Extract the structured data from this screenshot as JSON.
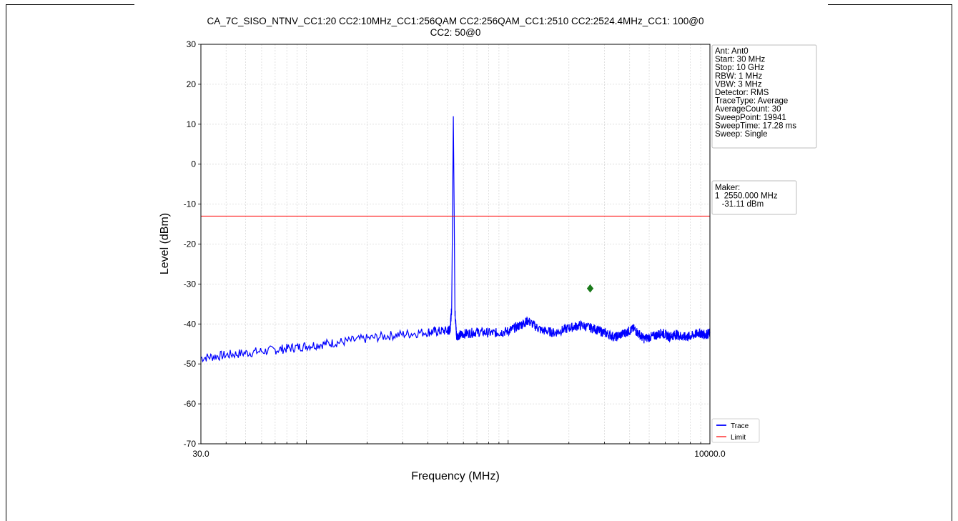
{
  "chart_data": {
    "type": "line",
    "title_line1": "CA_7C_SISO_NTNV_CC1:20 CC2:10MHz_CC1:256QAM CC2:256QAM_CC1:2510 CC2:2524.4MHz_CC1: 100@0",
    "title_line2": "CC2: 50@0",
    "xlabel": "Frequency (MHz)",
    "ylabel": "Level (dBm)",
    "xscale": "log",
    "xlim": [
      30,
      10000
    ],
    "ylim": [
      -70,
      30
    ],
    "x_tick_labels": [
      "30.0",
      "10000.0"
    ],
    "y_ticks": [
      30,
      20,
      10,
      0,
      -10,
      -20,
      -30,
      -40,
      -50,
      -60,
      -70
    ],
    "y_tick_labels": [
      "30",
      "20",
      "10",
      "0",
      "-10",
      "-20",
      "-30",
      "-40",
      "-50",
      "-60",
      "-70"
    ],
    "grid": true,
    "series": [
      {
        "name": "Trace",
        "color": "#0000ff",
        "points": [
          [
            30,
            -48.5
          ],
          [
            45,
            -47.5
          ],
          [
            70,
            -46.5
          ],
          [
            100,
            -45.5
          ],
          [
            150,
            -44.5
          ],
          [
            250,
            -43.0
          ],
          [
            400,
            -42.0
          ],
          [
            500,
            -41.7
          ],
          [
            515,
            -41.5
          ],
          [
            525,
            -36
          ],
          [
            535,
            12.0
          ],
          [
            545,
            -37
          ],
          [
            555,
            -43.0
          ],
          [
            600,
            -42.5
          ],
          [
            700,
            -42.0
          ],
          [
            850,
            -42.3
          ],
          [
            1000,
            -41.8
          ],
          [
            1150,
            -40.3
          ],
          [
            1250,
            -39.2
          ],
          [
            1450,
            -41.5
          ],
          [
            1700,
            -42.2
          ],
          [
            2000,
            -41.0
          ],
          [
            2300,
            -40.3
          ],
          [
            2700,
            -41.3
          ],
          [
            3000,
            -42.2
          ],
          [
            3400,
            -43.3
          ],
          [
            3800,
            -42.2
          ],
          [
            4200,
            -41.2
          ],
          [
            4700,
            -43.7
          ],
          [
            5300,
            -43.0
          ],
          [
            5800,
            -42.2
          ],
          [
            6300,
            -43.2
          ],
          [
            6800,
            -42.6
          ],
          [
            7400,
            -43.3
          ],
          [
            8100,
            -43.0
          ],
          [
            8800,
            -42.2
          ],
          [
            9400,
            -42.7
          ],
          [
            10000,
            -42.3
          ]
        ]
      },
      {
        "name": "Limit",
        "color": "#ff0000",
        "points": [
          [
            30,
            -13
          ],
          [
            10000,
            -13
          ]
        ]
      }
    ],
    "marker": {
      "x": 2550,
      "y": -31.11,
      "color": "#1a7a1a"
    },
    "legend": {
      "placement": "lower-right",
      "entries": [
        {
          "label": "Trace",
          "color": "#0000ff"
        },
        {
          "label": "Limit",
          "color": "#ff0000"
        }
      ]
    },
    "info_box": {
      "placement": "top-right",
      "lines": [
        "Ant: Ant0",
        "Start: 30 MHz",
        "Stop: 10 GHz",
        "RBW: 1 MHz",
        "VBW: 3 MHz",
        "Detector: RMS",
        "TraceType: Average",
        "AverageCount: 30",
        "SweepPoint: 19941",
        "SweepTime: 17.28 ms",
        "Sweep: Single"
      ]
    },
    "marker_box": {
      "placement": "right",
      "lines": [
        "Maker:",
        "1  2550.000 MHz",
        "   -31.11 dBm"
      ]
    }
  }
}
